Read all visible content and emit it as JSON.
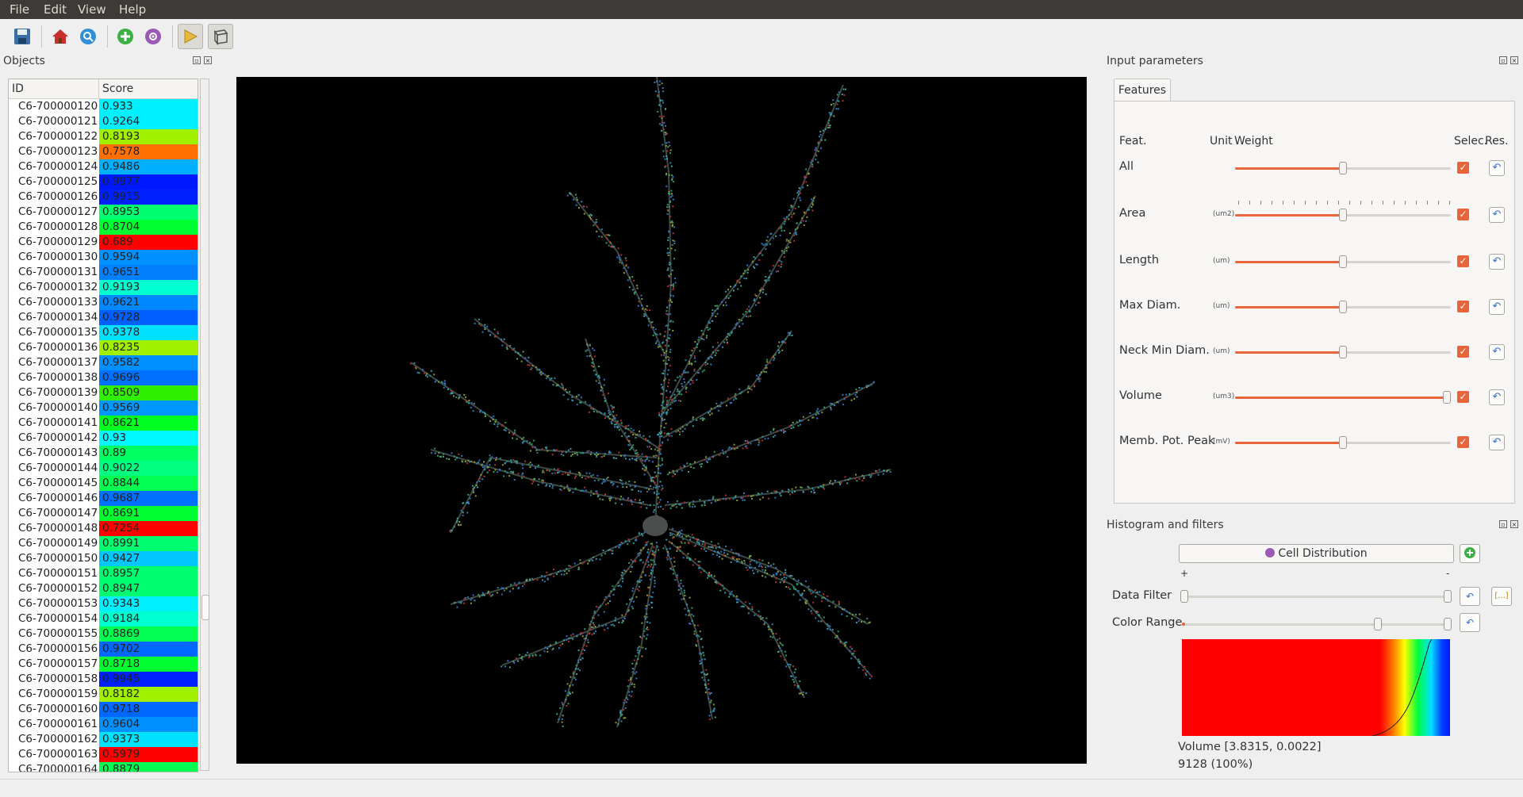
{
  "menu": [
    "File",
    "Edit",
    "View",
    "Help"
  ],
  "toolbar": {
    "buttons": [
      "save-icon",
      "home-icon",
      "search-icon",
      "add-icon",
      "gear-icon",
      "play-icon",
      "box-icon"
    ]
  },
  "objects_panel": {
    "title": "Objects",
    "columns": [
      "ID",
      "Score"
    ],
    "rows": [
      {
        "id": "C6-700000120",
        "score": "0.933",
        "color": "#00f0ff"
      },
      {
        "id": "C6-700000121",
        "score": "0.9264",
        "color": "#00f0ff"
      },
      {
        "id": "C6-700000122",
        "score": "0.8193",
        "color": "#a0f000"
      },
      {
        "id": "C6-700000123",
        "score": "0.7578",
        "color": "#ff7000"
      },
      {
        "id": "C6-700000124",
        "score": "0.9486",
        "color": "#00b0ff"
      },
      {
        "id": "C6-700000125",
        "score": "0.9977",
        "color": "#0018ff"
      },
      {
        "id": "C6-700000126",
        "score": "0.9915",
        "color": "#0020ff"
      },
      {
        "id": "C6-700000127",
        "score": "0.8953",
        "color": "#00ff70"
      },
      {
        "id": "C6-700000128",
        "score": "0.8704",
        "color": "#00ff30"
      },
      {
        "id": "C6-700000129",
        "score": "0.689",
        "color": "#ff0000"
      },
      {
        "id": "C6-700000130",
        "score": "0.9594",
        "color": "#0090ff"
      },
      {
        "id": "C6-700000131",
        "score": "0.9651",
        "color": "#0080ff"
      },
      {
        "id": "C6-700000132",
        "score": "0.9193",
        "color": "#00ffd0"
      },
      {
        "id": "C6-700000133",
        "score": "0.9621",
        "color": "#0088ff"
      },
      {
        "id": "C6-700000134",
        "score": "0.9728",
        "color": "#0060ff"
      },
      {
        "id": "C6-700000135",
        "score": "0.9378",
        "color": "#00e0ff"
      },
      {
        "id": "C6-700000136",
        "score": "0.8235",
        "color": "#a0f000"
      },
      {
        "id": "C6-700000137",
        "score": "0.9582",
        "color": "#0090ff"
      },
      {
        "id": "C6-700000138",
        "score": "0.9696",
        "color": "#0070ff"
      },
      {
        "id": "C6-700000139",
        "score": "0.8509",
        "color": "#30f000"
      },
      {
        "id": "C6-700000140",
        "score": "0.9569",
        "color": "#0098ff"
      },
      {
        "id": "C6-700000141",
        "score": "0.8621",
        "color": "#00ff20"
      },
      {
        "id": "C6-700000142",
        "score": "0.93",
        "color": "#00f8ff"
      },
      {
        "id": "C6-700000143",
        "score": "0.89",
        "color": "#00ff60"
      },
      {
        "id": "C6-700000144",
        "score": "0.9022",
        "color": "#00ff80"
      },
      {
        "id": "C6-700000145",
        "score": "0.8844",
        "color": "#00ff50"
      },
      {
        "id": "C6-700000146",
        "score": "0.9687",
        "color": "#0070ff"
      },
      {
        "id": "C6-700000147",
        "score": "0.8691",
        "color": "#00ff30"
      },
      {
        "id": "C6-700000148",
        "score": "0.7254",
        "color": "#ff0000"
      },
      {
        "id": "C6-700000149",
        "score": "0.8991",
        "color": "#00ff70"
      },
      {
        "id": "C6-700000150",
        "score": "0.9427",
        "color": "#00c8ff"
      },
      {
        "id": "C6-700000151",
        "score": "0.8957",
        "color": "#00ff70"
      },
      {
        "id": "C6-700000152",
        "score": "0.8947",
        "color": "#00ff70"
      },
      {
        "id": "C6-700000153",
        "score": "0.9343",
        "color": "#00f0ff"
      },
      {
        "id": "C6-700000154",
        "score": "0.9184",
        "color": "#00ffd0"
      },
      {
        "id": "C6-700000155",
        "score": "0.8869",
        "color": "#00ff50"
      },
      {
        "id": "C6-700000156",
        "score": "0.9702",
        "color": "#0068ff"
      },
      {
        "id": "C6-700000157",
        "score": "0.8718",
        "color": "#00ff30"
      },
      {
        "id": "C6-700000158",
        "score": "0.9945",
        "color": "#0020ff"
      },
      {
        "id": "C6-700000159",
        "score": "0.8182",
        "color": "#a0f000"
      },
      {
        "id": "C6-700000160",
        "score": "0.9718",
        "color": "#0068ff"
      },
      {
        "id": "C6-700000161",
        "score": "0.9604",
        "color": "#0090ff"
      },
      {
        "id": "C6-700000162",
        "score": "0.9373",
        "color": "#00e0ff"
      },
      {
        "id": "C6-700000163",
        "score": "0.5979",
        "color": "#ff0000"
      },
      {
        "id": "C6-700000164",
        "score": "0.8879",
        "color": "#00ff50"
      }
    ]
  },
  "input_params": {
    "title": "Input parameters",
    "tab": "Features",
    "headers": {
      "feat": "Feat.",
      "unit": "Unit",
      "weight": "Weight",
      "selec": "Selec.",
      "res": "Res."
    },
    "rows": [
      {
        "label": "All",
        "unit": "",
        "value": 0.5,
        "ticks": false
      },
      {
        "label": "Area",
        "unit": "(um2)",
        "value": 0.5,
        "ticks": true
      },
      {
        "label": "Length",
        "unit": "(um)",
        "value": 0.5,
        "ticks": false
      },
      {
        "label": "Max Diam.",
        "unit": "(um)",
        "value": 0.5,
        "ticks": false
      },
      {
        "label": "Neck Min Diam.",
        "unit": "(um)",
        "value": 0.5,
        "ticks": false
      },
      {
        "label": "Volume",
        "unit": "(um3)",
        "value": 1.0,
        "ticks": false
      },
      {
        "label": "Memb. Pot. Peak",
        "unit": "(mV)",
        "value": 0.5,
        "ticks": false
      }
    ]
  },
  "histogram": {
    "title": "Histogram and filters",
    "distribution_label": "Cell Distribution",
    "plus": "+",
    "minus": "-",
    "data_filter_label": "Data Filter",
    "color_range_label": "Color Range",
    "range_button": "[...]",
    "summary": "Volume [3.8315, 0.0022]",
    "count": "9128 (100%)"
  }
}
